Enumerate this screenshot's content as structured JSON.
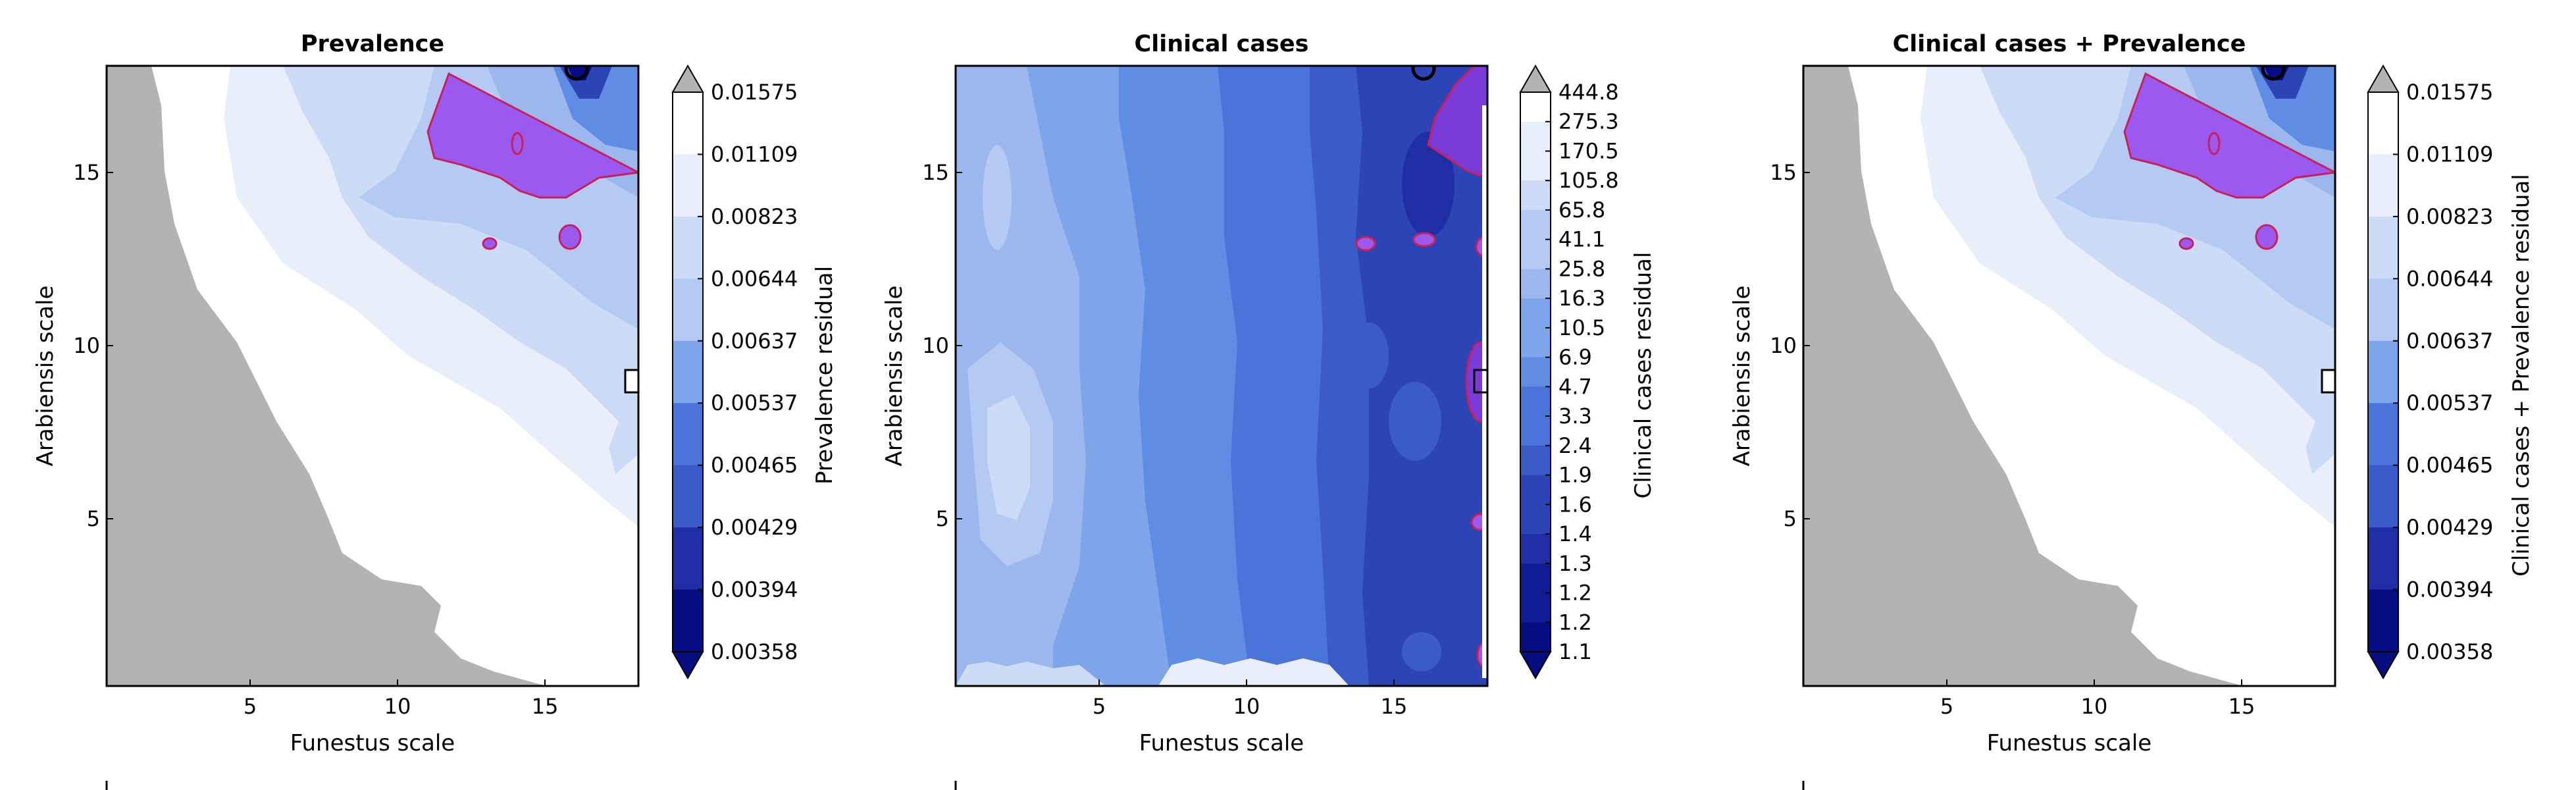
{
  "chart_data": [
    {
      "type": "heatmap",
      "title": "Prevalence",
      "xlabel": "Funestus scale",
      "ylabel": "Arabiensis scale",
      "xlim": [
        0,
        18
      ],
      "ylim": [
        0,
        18
      ],
      "xticks": [
        "5",
        "10",
        "15"
      ],
      "yticks": [
        "5",
        "10",
        "15"
      ],
      "colorbar_label": "Prevalence residual",
      "colorbar_ticks": [
        "0.01575",
        "0.01109",
        "0.00823",
        "0.00644",
        "0.00637",
        "0.00537",
        "0.00465",
        "0.00429",
        "0.00394",
        "0.00358"
      ],
      "grey_region": "lower-left",
      "highlight_contour": "top-right",
      "legend": "bottom"
    },
    {
      "type": "heatmap",
      "title": "Clinical cases",
      "xlabel": "Funestus scale",
      "ylabel": "Arabiensis scale",
      "xlim": [
        0,
        18
      ],
      "ylim": [
        0,
        18
      ],
      "xticks": [
        "5",
        "10",
        "15"
      ],
      "yticks": [
        "5",
        "10",
        "15"
      ],
      "colorbar_label": "Clinical cases residual",
      "colorbar_ticks": [
        "444.8",
        "275.3",
        "170.5",
        "105.8",
        "65.8",
        "41.1",
        "25.8",
        "16.3",
        "10.5",
        "6.9",
        "4.7",
        "3.3",
        "2.4",
        "1.9",
        "1.6",
        "1.4",
        "1.3",
        "1.2",
        "1.2",
        "1.1"
      ],
      "highlight_contour": "right edge",
      "legend": "bottom"
    },
    {
      "type": "heatmap",
      "title": "Clinical cases + Prevalence",
      "xlabel": "Funestus scale",
      "ylabel": "Arabiensis scale",
      "xlim": [
        0,
        18
      ],
      "ylim": [
        0,
        18
      ],
      "xticks": [
        "5",
        "10",
        "15"
      ],
      "yticks": [
        "5",
        "10",
        "15"
      ],
      "colorbar_label": "Clinical cases + Prevalence residual",
      "colorbar_ticks": [
        "0.01575",
        "0.01109",
        "0.00823",
        "0.00644",
        "0.00637",
        "0.00537",
        "0.00465",
        "0.00429",
        "0.00394",
        "0.00358"
      ],
      "grey_region": "lower-left",
      "highlight_contour": "top-right",
      "legend": "bottom"
    }
  ],
  "colors": {
    "grey": "#b3b3b3",
    "highlight_fill": "#9b59f0",
    "highlight_edge": "#c8205a",
    "levels": [
      "#ffffff",
      "#e8eefa",
      "#cddcf6",
      "#b4caf2",
      "#9bb7ee",
      "#7ea4ea",
      "#5f8de4",
      "#4a74d8",
      "#3b5bc8",
      "#2d44b6",
      "#1f2ea4",
      "#111b93",
      "#050d80"
    ]
  }
}
